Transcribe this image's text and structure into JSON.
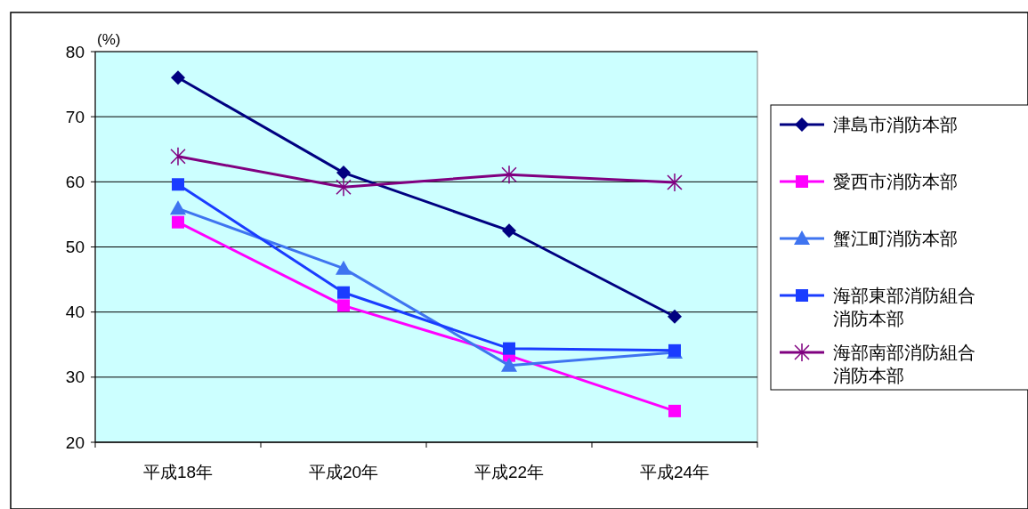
{
  "chart_data": {
    "type": "line",
    "ylabel": "(%)",
    "categories": [
      "平成18年",
      "平成20年",
      "平成22年",
      "平成24年"
    ],
    "series": [
      {
        "name": "津島市消防本部",
        "color": "#000080",
        "marker": "diamond",
        "values": [
          76.0,
          61.4,
          52.5,
          39.3
        ]
      },
      {
        "name": "愛西市消防本部",
        "color": "#ff00ff",
        "marker": "square",
        "values": [
          53.8,
          41.0,
          33.3,
          24.8
        ]
      },
      {
        "name": "蟹江町消防本部",
        "color": "#3f74f0",
        "marker": "triangle",
        "values": [
          55.9,
          46.7,
          31.8,
          33.8
        ]
      },
      {
        "name": "海部東部消防組合消防本部",
        "color": "#1a3cff",
        "marker": "square",
        "values": [
          59.6,
          43.0,
          34.4,
          34.1
        ]
      },
      {
        "name": "海部南部消防組合消防本部",
        "color": "#800080",
        "marker": "cross",
        "values": [
          63.9,
          59.2,
          61.1,
          59.9
        ]
      }
    ],
    "ylim": [
      20,
      80
    ],
    "yticks": [
      20,
      30,
      40,
      50,
      60,
      70,
      80
    ],
    "grid": "y",
    "legend": "right"
  }
}
